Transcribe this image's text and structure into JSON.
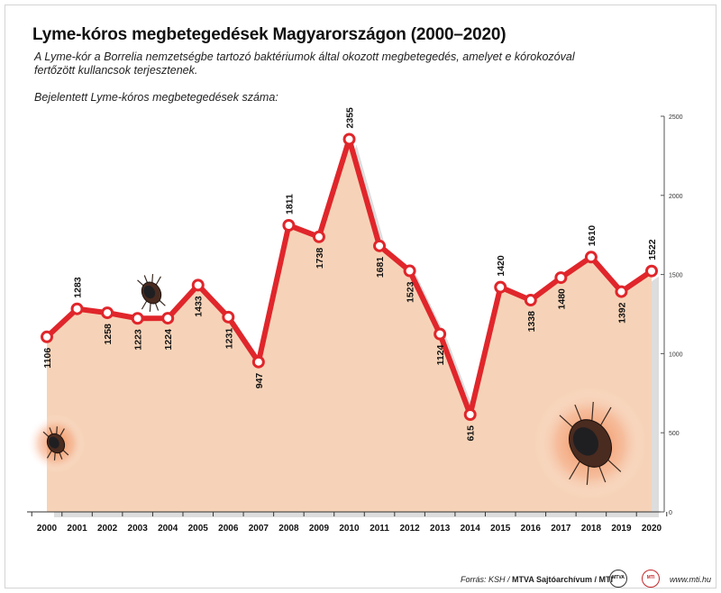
{
  "header": {
    "title": "Lyme-kóros megbetegedések Magyarországon (2000–2020)",
    "subtitle": "A Lyme-kór a Borrelia nemzetségbe tartozó baktériumok által okozott megbetegedés, amelyet e kórokozóval fertőzött kullancsok terjesztenek.",
    "ylabel": "Bejelentett Lyme-kóros megbetegedések száma:"
  },
  "chart_data": {
    "type": "line",
    "title": "Lyme-kóros megbetegedések Magyarországon (2000–2020)",
    "ylabel": "Bejelentett Lyme-kóros megbetegedések száma:",
    "categories": [
      "2000",
      "2001",
      "2002",
      "2003",
      "2004",
      "2005",
      "2006",
      "2007",
      "2008",
      "2009",
      "2010",
      "2011",
      "2012",
      "2013",
      "2014",
      "2015",
      "2016",
      "2017",
      "2018",
      "2019",
      "2020"
    ],
    "values": [
      1106,
      1283,
      1258,
      1223,
      1224,
      1433,
      1231,
      947,
      1811,
      1738,
      2355,
      1681,
      1523,
      1124,
      615,
      1420,
      1338,
      1480,
      1610,
      1392,
      1522
    ],
    "ylim": [
      0,
      2500
    ],
    "yticks": [
      0,
      500,
      1000,
      1500,
      2000,
      2500
    ],
    "y_axis_side": "right",
    "grid": false,
    "legend": "none",
    "data_labels": true,
    "colors": {
      "line": "#e0262b",
      "area": "#f6d3b8",
      "marker_fill": "#ffffff",
      "label": "#111111"
    }
  },
  "footer": {
    "source_prefix": "Forrás: KSH /",
    "source_bold": "MTVA Sajtóarchívum / MTI",
    "logo_left": "MTVA",
    "logo_right": "MTI",
    "website": "www.mti.hu"
  }
}
